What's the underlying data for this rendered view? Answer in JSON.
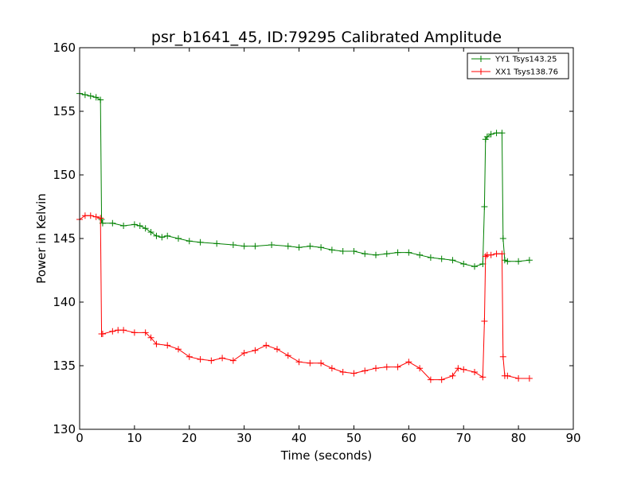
{
  "chart_data": {
    "type": "line",
    "title": "psr_b1641_45, ID:79295 Calibrated Amplitude",
    "xlabel": "Time (seconds)",
    "ylabel": "Power in Kelvin",
    "xlim": [
      0,
      90
    ],
    "ylim": [
      130,
      160
    ],
    "xticks": [
      "0",
      "10",
      "20",
      "30",
      "40",
      "50",
      "60",
      "70",
      "80",
      "90"
    ],
    "yticks": [
      "130",
      "135",
      "140",
      "145",
      "150",
      "155",
      "160"
    ],
    "grid": false,
    "legend_position": "top-right",
    "marker": "+",
    "series": [
      {
        "name": "YY1 Tsys143.25",
        "color": "#008000",
        "x": [
          0,
          1,
          2,
          3,
          3.8,
          4.0,
          4.2,
          6,
          8,
          10,
          11,
          12,
          13,
          14,
          15,
          16,
          18,
          20,
          22,
          25,
          28,
          30,
          32,
          35,
          38,
          40,
          42,
          44,
          46,
          48,
          50,
          52,
          54,
          56,
          58,
          60,
          62,
          64,
          66,
          68,
          70,
          72,
          73.5,
          73.8,
          74.0,
          74.3,
          75,
          76,
          77.0,
          77.2,
          77.5,
          78,
          80,
          82
        ],
        "y": [
          156.4,
          156.3,
          156.2,
          156.1,
          155.9,
          146.5,
          146.2,
          146.2,
          146.0,
          146.1,
          146.0,
          145.8,
          145.5,
          145.2,
          145.1,
          145.2,
          145.0,
          144.8,
          144.7,
          144.6,
          144.5,
          144.4,
          144.4,
          144.5,
          144.4,
          144.3,
          144.4,
          144.3,
          144.1,
          144.0,
          144.0,
          143.8,
          143.7,
          143.8,
          143.9,
          143.9,
          143.7,
          143.5,
          143.4,
          143.3,
          143.0,
          142.8,
          143.0,
          147.5,
          152.8,
          153.0,
          153.2,
          153.3,
          153.3,
          145.0,
          143.3,
          143.2,
          143.2,
          143.3
        ]
      },
      {
        "name": "XX1 Tsys138.76",
        "color": "#ff0000",
        "x": [
          0,
          1,
          2,
          3,
          3.8,
          4.0,
          4.2,
          6,
          7,
          8,
          10,
          12,
          13,
          14,
          16,
          18,
          20,
          22,
          24,
          26,
          28,
          30,
          32,
          34,
          36,
          38,
          40,
          42,
          44,
          46,
          48,
          50,
          52,
          54,
          56,
          58,
          60,
          62,
          64,
          66,
          68,
          69,
          70,
          72,
          73.5,
          73.8,
          74.0,
          74.3,
          75,
          76,
          77.0,
          77.2,
          77.5,
          78,
          80,
          82
        ],
        "y": [
          146.5,
          146.8,
          146.8,
          146.7,
          146.6,
          137.5,
          137.5,
          137.7,
          137.8,
          137.8,
          137.6,
          137.6,
          137.2,
          136.7,
          136.6,
          136.3,
          135.7,
          135.5,
          135.4,
          135.6,
          135.4,
          136.0,
          136.2,
          136.6,
          136.3,
          135.8,
          135.3,
          135.2,
          135.2,
          134.8,
          134.5,
          134.4,
          134.6,
          134.8,
          134.9,
          134.9,
          135.3,
          134.8,
          133.9,
          133.9,
          134.2,
          134.8,
          134.7,
          134.5,
          134.1,
          138.5,
          143.6,
          143.7,
          143.7,
          143.8,
          143.8,
          135.7,
          134.2,
          134.2,
          134.0,
          134.0
        ]
      }
    ]
  }
}
